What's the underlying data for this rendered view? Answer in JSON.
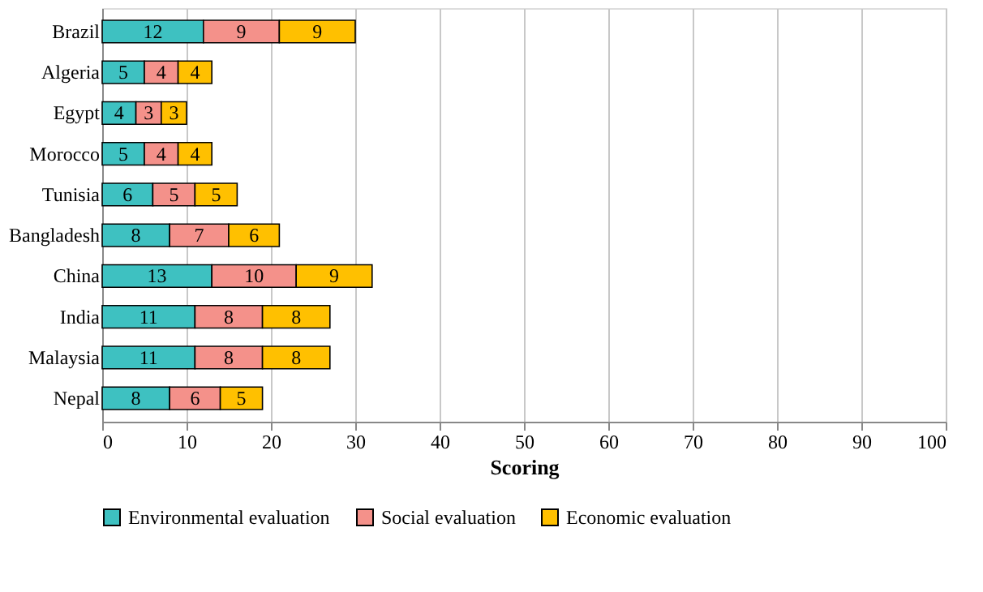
{
  "chart_data": {
    "type": "bar",
    "orientation": "horizontal",
    "stacked": true,
    "xlabel": "Scoring",
    "categories": [
      "Brazil",
      "Algeria",
      "Egypt",
      "Morocco",
      "Tunisia",
      "Bangladesh",
      "China",
      "India",
      "Malaysia",
      "Nepal"
    ],
    "series": [
      {
        "name": "Environmental evaluation",
        "color": "#3ec1c1",
        "values": [
          12,
          5,
          4,
          5,
          6,
          8,
          13,
          11,
          11,
          8
        ]
      },
      {
        "name": "Social evaluation",
        "color": "#f4918a",
        "values": [
          9,
          4,
          3,
          4,
          5,
          7,
          10,
          8,
          8,
          6
        ]
      },
      {
        "name": "Economic evaluation",
        "color": "#ffc000",
        "values": [
          9,
          4,
          3,
          4,
          5,
          6,
          9,
          8,
          8,
          5
        ]
      }
    ],
    "xlim": [
      0,
      100
    ],
    "xticks": [
      0,
      10,
      20,
      30,
      40,
      50,
      60,
      70,
      80,
      90,
      100
    ],
    "grid": "x",
    "legend": "bottom",
    "data_labels": true
  }
}
